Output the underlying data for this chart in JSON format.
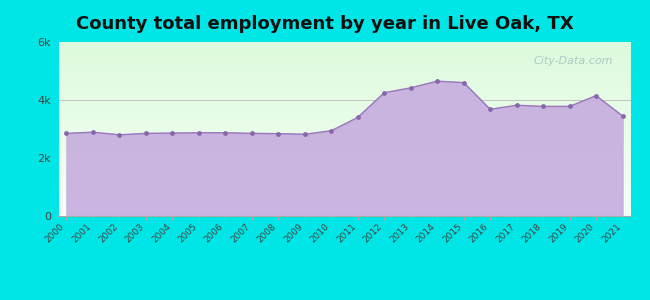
{
  "title": "County total employment by year in Live Oak, TX",
  "years": [
    2000,
    2001,
    2002,
    2003,
    2004,
    2005,
    2006,
    2007,
    2008,
    2009,
    2010,
    2011,
    2012,
    2013,
    2014,
    2015,
    2016,
    2017,
    2018,
    2019,
    2020,
    2021
  ],
  "values": [
    2850,
    2890,
    2800,
    2850,
    2860,
    2870,
    2870,
    2850,
    2840,
    2820,
    2940,
    3400,
    4250,
    4420,
    4650,
    4600,
    3680,
    3820,
    3780,
    3780,
    4150,
    3450
  ],
  "ylim": [
    0,
    6000
  ],
  "yticks": [
    0,
    2000,
    4000,
    6000
  ],
  "ytick_labels": [
    "0",
    "2k",
    "4k",
    "6k"
  ],
  "fill_color": "#c8b0e0",
  "line_color": "#9977bb",
  "dot_color": "#8866aa",
  "outer_bg": "#00e5e5",
  "plot_bg_top": "#e8fde8",
  "plot_bg_bottom": "#e8fde8",
  "title_fontsize": 13,
  "watermark": "City-Data.com"
}
